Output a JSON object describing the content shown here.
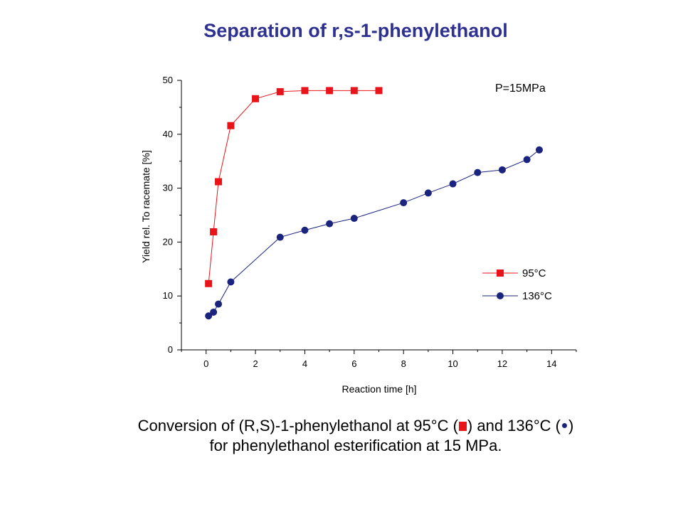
{
  "slide": {
    "title": "Separation of r,s-1-phenylethanol",
    "caption_line1_a": "Conversion of (R,S)-1-phenylethanol at 95°C (",
    "caption_line1_b": ") and 136°C (",
    "caption_line1_c": ")",
    "caption_line2": "for phenylethanol esterification at 15 MPa."
  },
  "chart_data": {
    "type": "line",
    "xlabel": "Reaction time [h]",
    "ylabel": "Yield rel. To racemate [%]",
    "annotation": "P=15MPa",
    "xlim": [
      -1,
      15
    ],
    "ylim": [
      0,
      50
    ],
    "xticks": [
      0,
      2,
      4,
      6,
      8,
      10,
      12,
      14
    ],
    "yticks": [
      0,
      10,
      20,
      30,
      40,
      50
    ],
    "legend_position": "bottom-right",
    "grid": false,
    "series": [
      {
        "name": "95°C",
        "color": "#e8141a",
        "marker": "square",
        "x": [
          0.1,
          0.3,
          0.5,
          1,
          2,
          3,
          4,
          5,
          6,
          7
        ],
        "y": [
          12.3,
          21.9,
          31.2,
          41.6,
          46.6,
          47.9,
          48.1,
          48.1,
          48.1,
          48.1
        ]
      },
      {
        "name": "136°C",
        "color": "#1a237e",
        "marker": "circle",
        "x": [
          0.1,
          0.3,
          0.5,
          1,
          3,
          4,
          5,
          6,
          8,
          9,
          10,
          11,
          12,
          13,
          13.5
        ],
        "y": [
          6.3,
          7.0,
          8.5,
          12.6,
          20.9,
          22.2,
          23.4,
          24.4,
          27.3,
          29.1,
          30.8,
          32.9,
          33.4,
          35.3,
          37.1
        ]
      }
    ]
  }
}
